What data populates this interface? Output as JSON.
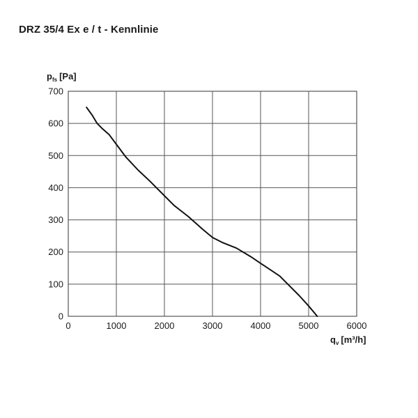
{
  "title": "DRZ 35/4 Ex e / t - Kennlinie",
  "chart_data": {
    "type": "line",
    "title": "DRZ 35/4 Ex e / t - Kennlinie",
    "ylabel": {
      "main": "p",
      "sub": "fs",
      "unit": "[Pa]"
    },
    "xlabel": {
      "main": "q",
      "sub": "v",
      "unit": "[m³/h]"
    },
    "xlim": [
      0,
      6000
    ],
    "ylim": [
      0,
      700
    ],
    "xticks": [
      0,
      1000,
      2000,
      3000,
      4000,
      5000,
      6000
    ],
    "yticks": [
      0,
      100,
      200,
      300,
      400,
      500,
      600,
      700
    ],
    "grid": true,
    "series": [
      {
        "color": "#111111",
        "x": [
          380,
          500,
          600,
          700,
          850,
          1000,
          1200,
          1450,
          1700,
          2000,
          2200,
          2500,
          2800,
          3000,
          3200,
          3500,
          3800,
          4000,
          4200,
          4400,
          4600,
          4800,
          5000,
          5180
        ],
        "y": [
          650,
          625,
          600,
          585,
          565,
          535,
          495,
          455,
          420,
          375,
          345,
          310,
          270,
          245,
          230,
          212,
          185,
          165,
          145,
          125,
          95,
          65,
          32,
          0
        ]
      }
    ]
  }
}
